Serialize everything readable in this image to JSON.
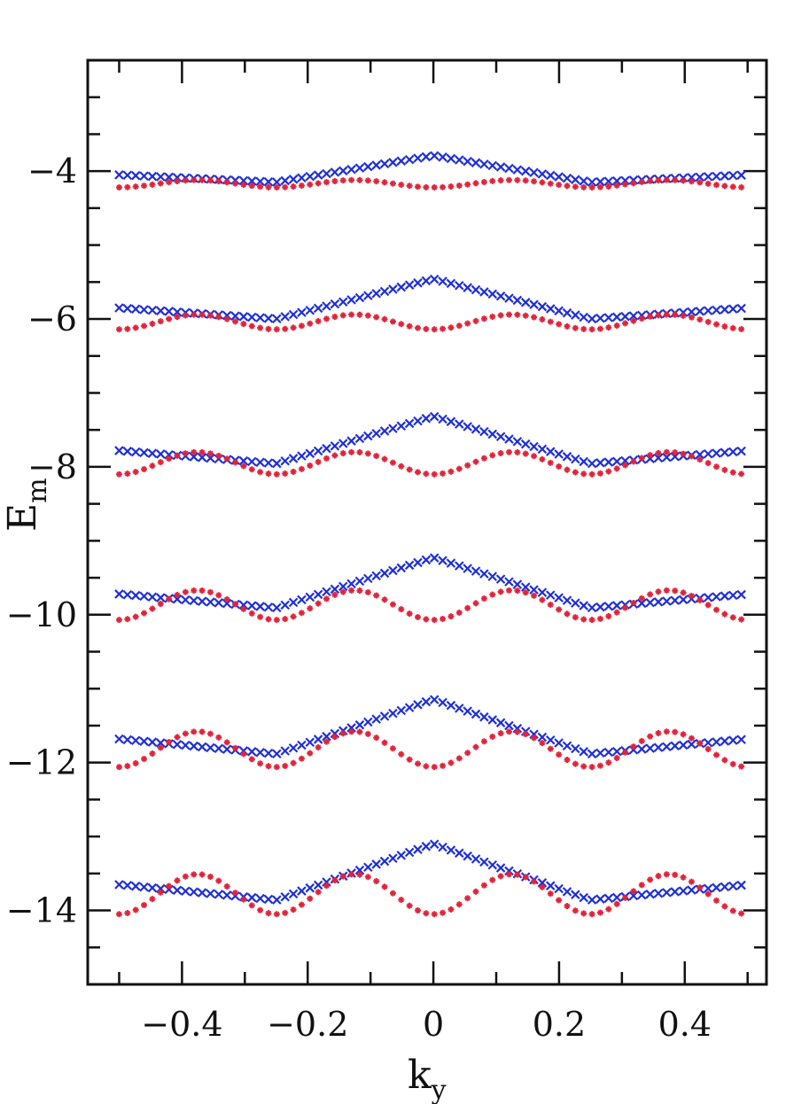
{
  "chart_data": {
    "type": "scatter",
    "title": "",
    "xlabel": "k",
    "xlabel_sub": "y",
    "ylabel": "E",
    "ylabel_sub": "m",
    "xlim": [
      -0.55,
      0.53
    ],
    "ylim": [
      -15.0,
      -2.5
    ],
    "x_ticks": [
      -0.4,
      -0.2,
      0,
      0.2,
      0.4
    ],
    "x_tick_labels": [
      "−0.4",
      "−0.2",
      "0",
      "0.2",
      "0.4"
    ],
    "y_ticks": [
      -14,
      -12,
      -10,
      -8,
      -6,
      -4
    ],
    "y_tick_labels": [
      "−14",
      "−12",
      "−10",
      "−8",
      "−6",
      "−4"
    ],
    "x_range": [
      -0.5,
      0.49
    ],
    "point_count": 76,
    "grid": false,
    "colors": {
      "blue": "#1f2fd6",
      "red": "#e0243a",
      "axis": "#111111"
    },
    "series": [
      {
        "color": "blue",
        "marker": "x",
        "bands": [
          {
            "center": -4.05,
            "amplitude": 0.18,
            "phase_gap": 0.0
          },
          {
            "center": -5.85,
            "amplitude": 0.27,
            "phase_gap": 0.0
          },
          {
            "center": -7.78,
            "amplitude": 0.32,
            "phase_gap": 0.0
          },
          {
            "center": -9.72,
            "amplitude": 0.34,
            "phase_gap": 0.0
          },
          {
            "center": -11.68,
            "amplitude": 0.37,
            "phase_gap": 0.0
          },
          {
            "center": -13.65,
            "amplitude": 0.38,
            "phase_gap": 0.0
          }
        ]
      },
      {
        "color": "red",
        "marker": "*",
        "bands": [
          {
            "center": -4.17,
            "amplitude": 0.05
          },
          {
            "center": -6.04,
            "amplitude": 0.1
          },
          {
            "center": -7.95,
            "amplitude": 0.15
          },
          {
            "center": -9.87,
            "amplitude": 0.2
          },
          {
            "center": -11.82,
            "amplitude": 0.24
          },
          {
            "center": -13.78,
            "amplitude": 0.27
          }
        ]
      }
    ]
  }
}
